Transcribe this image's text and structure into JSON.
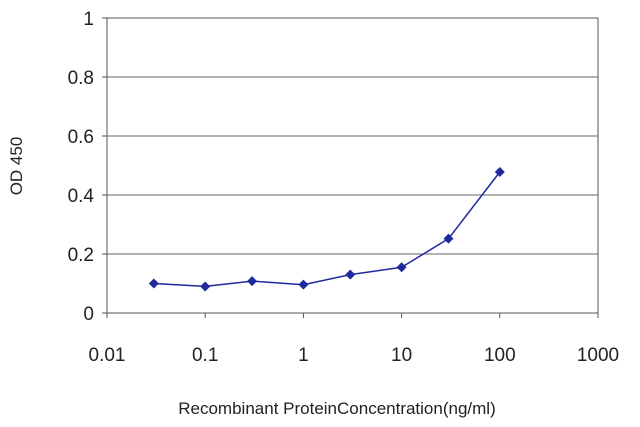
{
  "chart_data": {
    "type": "line",
    "title": "",
    "xlabel": "Recombinant ProteinConcentration(ng/ml)",
    "ylabel": "OD 450",
    "x_scale": "log",
    "xlim": [
      0.01,
      1000
    ],
    "ylim": [
      0,
      1
    ],
    "x_ticks": [
      "0.01",
      "0.1",
      "1",
      "10",
      "100",
      "1000"
    ],
    "y_ticks": [
      "0",
      "0.2",
      "0.4",
      "0.6",
      "0.8",
      "1"
    ],
    "grid": "horizontal",
    "series": [
      {
        "x": [
          0.03,
          0.1,
          0.3,
          1,
          3,
          10,
          30,
          100
        ],
        "y": [
          0.1,
          0.09,
          0.108,
          0.096,
          0.13,
          0.155,
          0.252,
          0.478
        ],
        "color": "#1f2a9e"
      }
    ]
  }
}
